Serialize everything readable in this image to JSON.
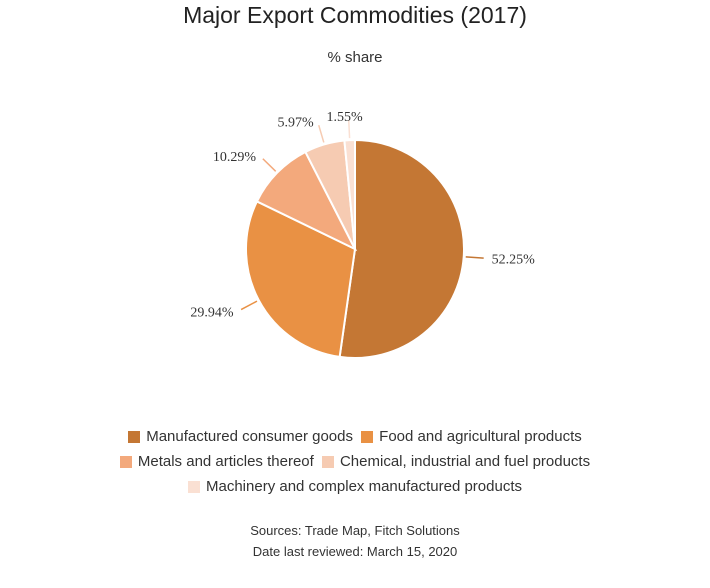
{
  "chart_data": {
    "type": "pie",
    "title": "Major Export Commodities (2017)",
    "subtitle": "% share",
    "series": [
      {
        "name": "Manufactured consumer goods",
        "value": 52.25,
        "label": "52.25%",
        "color": "#c47734"
      },
      {
        "name": "Food and agricultural products",
        "value": 29.94,
        "label": "29.94%",
        "color": "#e99144"
      },
      {
        "name": "Metals and articles thereof",
        "value": 10.29,
        "label": "10.29%",
        "color": "#f3a97c"
      },
      {
        "name": "Chemical, industrial and fuel products",
        "value": 5.97,
        "label": "5.97%",
        "color": "#f6cbb2"
      },
      {
        "name": "Machinery and complex manufactured products",
        "value": 1.55,
        "label": "1.55%",
        "color": "#fae0d3"
      }
    ],
    "legend_position": "bottom"
  },
  "footer": {
    "sources": "Sources: Trade Map, Fitch Solutions",
    "date": "Date last reviewed: March 15, 2020"
  }
}
